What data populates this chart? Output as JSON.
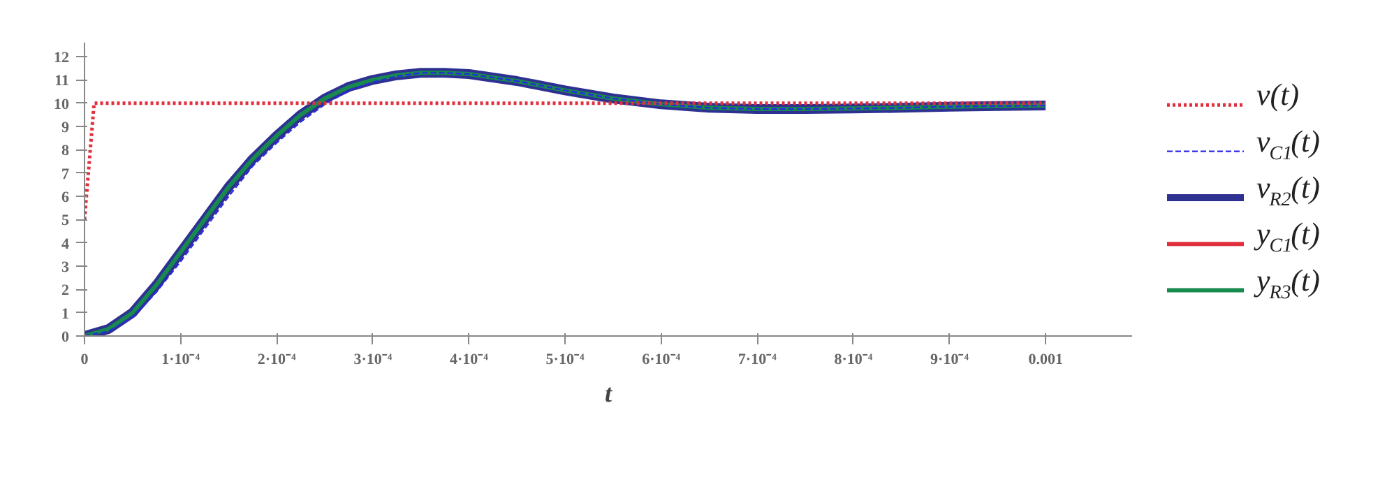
{
  "chart_data": {
    "type": "line",
    "xlabel": "t",
    "xlim": [
      0,
      0.00109
    ],
    "ylim": [
      0,
      12.6
    ],
    "xticks": [
      0,
      {
        "value": 0.0001,
        "label": "1·10⁻⁴"
      },
      {
        "value": 0.0002,
        "label": "2·10⁻⁴"
      },
      {
        "value": 0.0003,
        "label": "3·10⁻⁴"
      },
      {
        "value": 0.0004,
        "label": "4·10⁻⁴"
      },
      {
        "value": 0.0005,
        "label": "5·10⁻⁴"
      },
      {
        "value": 0.0006,
        "label": "6·10⁻⁴"
      },
      {
        "value": 0.0007,
        "label": "7·10⁻⁴"
      },
      {
        "value": 0.0008,
        "label": "8·10⁻⁴"
      },
      {
        "value": 0.0009,
        "label": "9·10⁻⁴"
      },
      0.001
    ],
    "yticks": [
      0,
      1,
      2,
      3,
      4,
      5,
      6,
      7,
      8,
      9,
      10,
      11,
      12
    ],
    "grid": false,
    "tick_labels": true,
    "legend": "right",
    "marker": "none",
    "x": [
      0,
      2.5e-05,
      5e-05,
      7.5e-05,
      0.0001,
      0.000125,
      0.00015,
      0.000175,
      0.0002,
      0.000225,
      0.00025,
      0.000275,
      0.0003,
      0.000325,
      0.00035,
      0.000375,
      0.0004,
      0.00045,
      0.0005,
      0.00055,
      0.0006,
      0.00065,
      0.0007,
      0.00075,
      0.0008,
      0.00085,
      0.0009,
      0.00095,
      0.001
    ],
    "series": [
      {
        "name": "v(t)",
        "color": "#e0303e",
        "line_style": "dotted",
        "x": [
          0,
          1e-05,
          0.001
        ],
        "values": [
          5,
          10,
          10
        ]
      },
      {
        "name": "v$_{C1}$(t)",
        "color": "#2a2ae0",
        "line_style": "dashed",
        "values": [
          0,
          0.2,
          0.8,
          1.9,
          3.2,
          4.6,
          6.0,
          7.3,
          8.3,
          9.2,
          9.95,
          10.55,
          10.9,
          11.15,
          11.3,
          11.3,
          11.25,
          10.95,
          10.55,
          10.2,
          9.95,
          9.8,
          9.75,
          9.75,
          9.77,
          9.8,
          9.85,
          9.88,
          9.9
        ]
      },
      {
        "name": "v$_{R2}$(t)",
        "color": "#2e3192",
        "line_style": "solid",
        "values": [
          0,
          0.3,
          1.0,
          2.2,
          3.6,
          5.0,
          6.4,
          7.6,
          8.6,
          9.5,
          10.2,
          10.7,
          11.0,
          11.2,
          11.3,
          11.3,
          11.25,
          10.95,
          10.55,
          10.2,
          9.95,
          9.8,
          9.75,
          9.75,
          9.77,
          9.8,
          9.85,
          9.88,
          9.9
        ]
      },
      {
        "name": "y$_{C1}$(t)",
        "color": "#e0303e",
        "line_style": "solid",
        "values": [
          null,
          null,
          null,
          null,
          null,
          null,
          null,
          null,
          null,
          null,
          null,
          null,
          null,
          null,
          null,
          null,
          null,
          null,
          null,
          null,
          null,
          null,
          null,
          null,
          null,
          null,
          null,
          null,
          null
        ]
      },
      {
        "name": "y$_{R3}$(t)",
        "color": "#178a4e",
        "line_style": "solid",
        "values": [
          0,
          0.3,
          1.0,
          2.2,
          3.6,
          5.0,
          6.4,
          7.6,
          8.6,
          9.5,
          10.2,
          10.7,
          11.0,
          11.2,
          11.3,
          11.3,
          11.25,
          10.95,
          10.55,
          10.2,
          9.95,
          9.8,
          9.75,
          9.75,
          9.77,
          9.8,
          9.85,
          9.88,
          9.9
        ]
      }
    ]
  }
}
